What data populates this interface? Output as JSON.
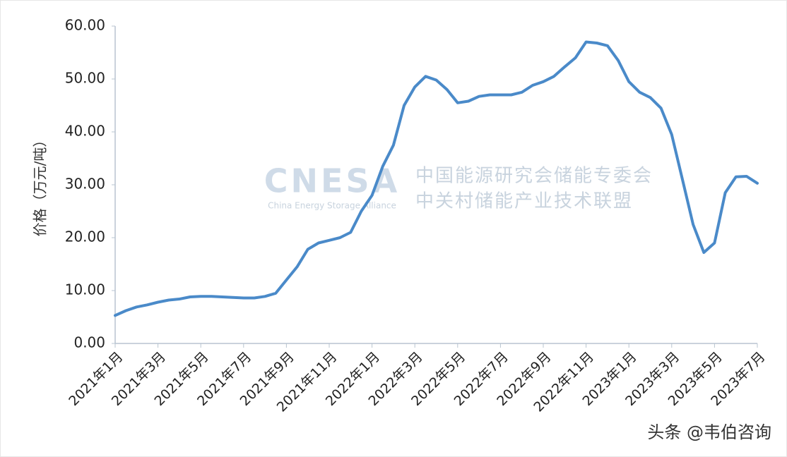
{
  "chart_data": {
    "type": "line",
    "y_label": "价格（万元/吨）",
    "annotations": [
      "CNESA",
      "China Energy Storage Alliance",
      "中国能源研究会储能专委会",
      "中关村储能产业技术联盟",
      "头条 @韦伯咨询"
    ],
    "categories": [
      "2021年1月",
      null,
      null,
      null,
      "2021年3月",
      null,
      null,
      null,
      "2021年5月",
      null,
      null,
      null,
      "2021年7月",
      null,
      null,
      null,
      "2021年9月",
      null,
      null,
      null,
      "2021年11月",
      null,
      null,
      null,
      "2022年1月",
      null,
      null,
      null,
      "2022年3月",
      null,
      null,
      null,
      "2022年5月",
      null,
      null,
      null,
      "2022年7月",
      null,
      null,
      null,
      "2022年9月",
      null,
      null,
      null,
      "2022年11月",
      null,
      null,
      null,
      "2023年1月",
      null,
      null,
      null,
      "2023年3月",
      null,
      null,
      null,
      "2023年5月",
      null,
      null,
      null,
      "2023年7月"
    ],
    "series": [
      {
        "name": "价格",
        "color": "#4a8ac9",
        "values": [
          5.3,
          6.2,
          6.9,
          7.3,
          7.8,
          8.2,
          8.4,
          8.8,
          8.9,
          8.9,
          8.8,
          8.7,
          8.6,
          8.6,
          8.9,
          9.5,
          12.0,
          14.5,
          17.8,
          19.0,
          19.5,
          20.0,
          21.0,
          25.0,
          28.0,
          33.5,
          37.5,
          45.0,
          48.5,
          50.5,
          49.8,
          48.0,
          45.5,
          45.8,
          46.7,
          47.0,
          47.0,
          47.0,
          47.5,
          48.8,
          49.5,
          50.5,
          52.3,
          54.0,
          57.0,
          56.8,
          56.3,
          53.5,
          49.5,
          47.5,
          46.5,
          44.5,
          39.5,
          31.0,
          22.5,
          17.2,
          19.0,
          28.5,
          31.5,
          31.6,
          30.3
        ]
      }
    ],
    "ylim": [
      0,
      60
    ],
    "yticks": [
      {
        "value": 0,
        "label": "0.00"
      },
      {
        "value": 10,
        "label": "10.00"
      },
      {
        "value": 20,
        "label": "20.00"
      },
      {
        "value": 30,
        "label": "30.00"
      },
      {
        "value": 40,
        "label": "40.00"
      },
      {
        "value": 50,
        "label": "50.00"
      },
      {
        "value": 60,
        "label": "60.00"
      }
    ],
    "grid": false
  }
}
